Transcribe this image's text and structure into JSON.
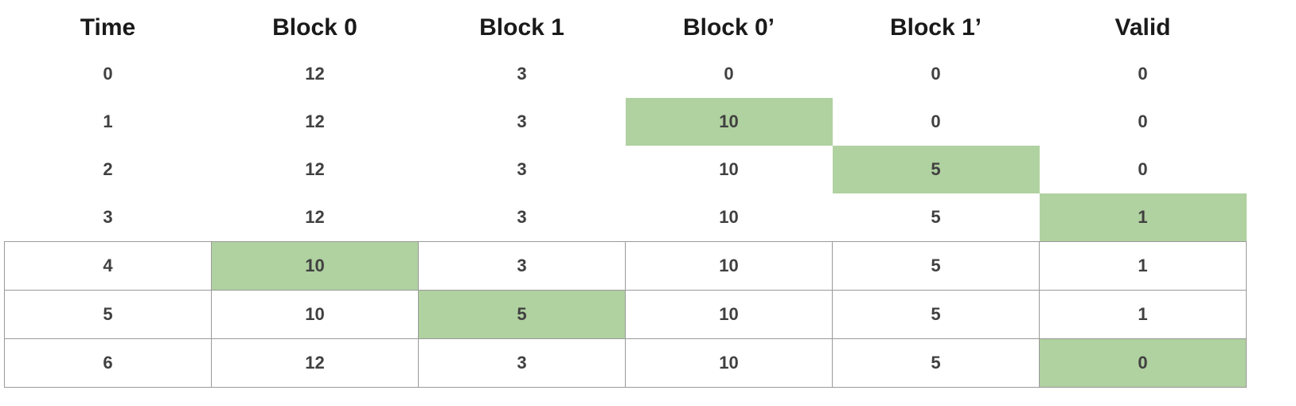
{
  "table": {
    "columns": [
      "Time",
      "Block 0",
      "Block 1",
      "Block 0’",
      "Block 1’",
      "Valid"
    ],
    "rows": [
      {
        "cells": [
          "0",
          "12",
          "3",
          "0",
          "0",
          "0"
        ],
        "highlight": [],
        "bordered": false
      },
      {
        "cells": [
          "1",
          "12",
          "3",
          "10",
          "0",
          "0"
        ],
        "highlight": [
          3
        ],
        "bordered": false
      },
      {
        "cells": [
          "2",
          "12",
          "3",
          "10",
          "5",
          "0"
        ],
        "highlight": [
          4
        ],
        "bordered": false
      },
      {
        "cells": [
          "3",
          "12",
          "3",
          "10",
          "5",
          "1"
        ],
        "highlight": [
          5
        ],
        "bordered": false
      },
      {
        "cells": [
          "4",
          "10",
          "3",
          "10",
          "5",
          "1"
        ],
        "highlight": [
          1
        ],
        "bordered": true
      },
      {
        "cells": [
          "5",
          "10",
          "5",
          "10",
          "5",
          "1"
        ],
        "highlight": [
          2
        ],
        "bordered": true
      },
      {
        "cells": [
          "6",
          "12",
          "3",
          "10",
          "5",
          "0"
        ],
        "highlight": [
          5
        ],
        "bordered": true
      }
    ]
  },
  "colors": {
    "highlight": "#b0d1a0",
    "border": "#9a9a9a"
  }
}
